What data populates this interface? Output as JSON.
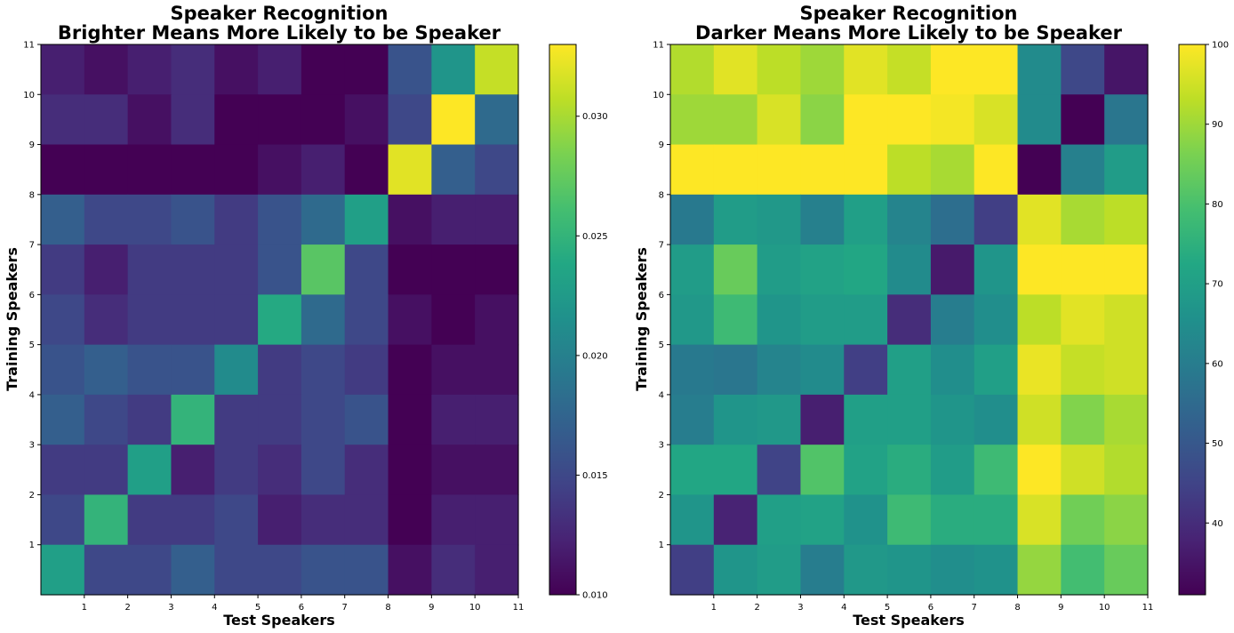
{
  "chart_data": [
    {
      "type": "heatmap",
      "title_line1": "Speaker Recognition",
      "title_line2": "Brighter Means More Likely to be Speaker",
      "xlabel": "Test Speakers",
      "ylabel": "Training Speakers",
      "colormap": "viridis",
      "clim": [
        0.01,
        0.033
      ],
      "x_ticks": [
        "1",
        "2",
        "3",
        "4",
        "5",
        "6",
        "7",
        "8",
        "9",
        "10",
        "11"
      ],
      "y_ticks": [
        "1",
        "2",
        "3",
        "4",
        "5",
        "6",
        "7",
        "8",
        "9",
        "10",
        "11"
      ],
      "colorbar_ticks": [
        0.01,
        0.015,
        0.02,
        0.025,
        0.03
      ],
      "colorbar_tick_labels": [
        "0.010",
        "0.015",
        "0.020",
        "0.025",
        "0.030"
      ],
      "rows_top_to_bottom": [
        [
          0.012,
          0.011,
          0.012,
          0.013,
          0.011,
          0.012,
          0.01,
          0.01,
          0.016,
          0.022,
          0.031
        ],
        [
          0.013,
          0.013,
          0.011,
          0.013,
          0.01,
          0.01,
          0.01,
          0.011,
          0.015,
          0.033,
          0.018
        ],
        [
          0.01,
          0.01,
          0.01,
          0.01,
          0.01,
          0.011,
          0.012,
          0.01,
          0.032,
          0.017,
          0.015
        ],
        [
          0.017,
          0.015,
          0.015,
          0.016,
          0.014,
          0.016,
          0.018,
          0.023,
          0.011,
          0.012,
          0.012
        ],
        [
          0.014,
          0.012,
          0.014,
          0.014,
          0.014,
          0.016,
          0.027,
          0.015,
          0.01,
          0.01,
          0.01
        ],
        [
          0.015,
          0.013,
          0.014,
          0.014,
          0.014,
          0.024,
          0.018,
          0.015,
          0.011,
          0.01,
          0.011
        ],
        [
          0.016,
          0.017,
          0.016,
          0.016,
          0.021,
          0.014,
          0.015,
          0.014,
          0.01,
          0.011,
          0.011
        ],
        [
          0.017,
          0.015,
          0.014,
          0.025,
          0.014,
          0.014,
          0.015,
          0.016,
          0.01,
          0.012,
          0.012
        ],
        [
          0.014,
          0.014,
          0.023,
          0.012,
          0.014,
          0.013,
          0.015,
          0.013,
          0.01,
          0.011,
          0.011
        ],
        [
          0.015,
          0.025,
          0.014,
          0.014,
          0.015,
          0.012,
          0.013,
          0.013,
          0.01,
          0.012,
          0.012
        ],
        [
          0.023,
          0.015,
          0.015,
          0.017,
          0.015,
          0.015,
          0.016,
          0.016,
          0.011,
          0.013,
          0.012
        ]
      ]
    },
    {
      "type": "heatmap",
      "title_line1": "Speaker Recognition",
      "title_line2": "Darker Means More Likely to be Speaker",
      "xlabel": "Test Speakers",
      "ylabel": "Training Speakers",
      "colormap": "viridis",
      "clim": [
        31,
        100
      ],
      "x_ticks": [
        "1",
        "2",
        "3",
        "4",
        "5",
        "6",
        "7",
        "8",
        "9",
        "10",
        "11"
      ],
      "y_ticks": [
        "1",
        "2",
        "3",
        "4",
        "5",
        "6",
        "7",
        "8",
        "9",
        "10",
        "11"
      ],
      "colorbar_ticks": [
        40,
        50,
        60,
        70,
        80,
        90,
        100
      ],
      "colorbar_tick_labels": [
        "40",
        "50",
        "60",
        "70",
        "80",
        "90",
        "100"
      ],
      "rows_top_to_bottom": [
        [
          92,
          97,
          93,
          90,
          97,
          94,
          100,
          100,
          64,
          46,
          35
        ],
        [
          90,
          90,
          96,
          88,
          100,
          100,
          99,
          96,
          64,
          31,
          58
        ],
        [
          100,
          100,
          100,
          100,
          100,
          93,
          91,
          100,
          31,
          61,
          69
        ],
        [
          59,
          69,
          68,
          61,
          70,
          62,
          56,
          44,
          97,
          91,
          93
        ],
        [
          69,
          84,
          69,
          71,
          72,
          64,
          36,
          67,
          100,
          100,
          100
        ],
        [
          68,
          78,
          67,
          69,
          69,
          40,
          60,
          65,
          93,
          97,
          95
        ],
        [
          59,
          58,
          62,
          64,
          44,
          70,
          65,
          70,
          98,
          94,
          95
        ],
        [
          60,
          67,
          68,
          37,
          70,
          70,
          67,
          65,
          95,
          87,
          91
        ],
        [
          72,
          72,
          45,
          81,
          71,
          74,
          69,
          78,
          100,
          95,
          92
        ],
        [
          67,
          38,
          70,
          71,
          66,
          78,
          74,
          74,
          96,
          85,
          88
        ],
        [
          44,
          67,
          69,
          60,
          68,
          67,
          65,
          66,
          89,
          79,
          84
        ]
      ]
    }
  ]
}
